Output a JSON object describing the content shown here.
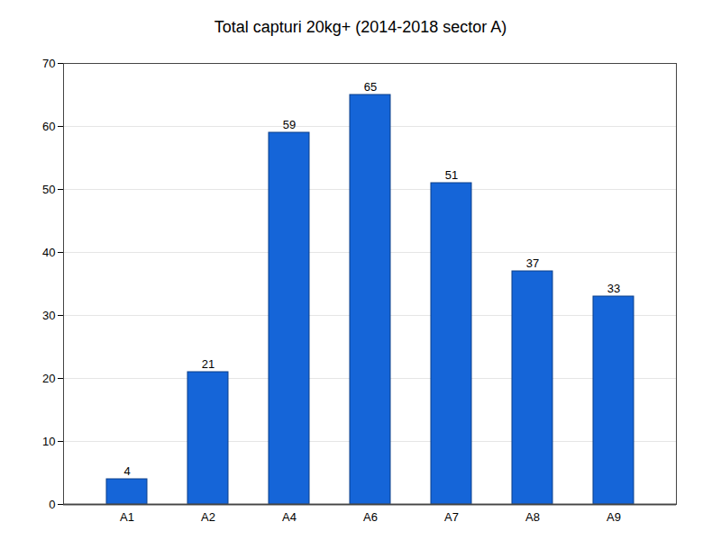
{
  "chart_data": {
    "type": "bar",
    "title": "Total capturi 20kg+ (2014-2018 sector A)",
    "categories": [
      "A1",
      "A2",
      "A4",
      "A6",
      "A7",
      "A8",
      "A9"
    ],
    "values": [
      4,
      21,
      59,
      65,
      51,
      37,
      33
    ],
    "color": "#1565d8",
    "ylim": [
      0,
      70
    ],
    "yticks": [
      0,
      10,
      20,
      30,
      40,
      50,
      60,
      70
    ],
    "grid": true,
    "data_labels": true
  }
}
